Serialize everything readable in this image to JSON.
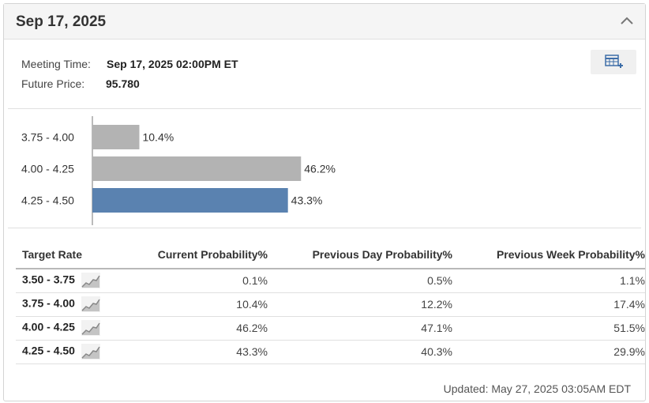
{
  "header": {
    "title": "Sep 17, 2025"
  },
  "meeting": {
    "time_label": "Meeting Time:",
    "time_value": "Sep 17, 2025 02:00PM ET",
    "price_label": "Future Price:",
    "price_value": "95.780"
  },
  "chart_data": {
    "type": "bar",
    "orientation": "horizontal",
    "categories": [
      "3.75 - 4.00",
      "4.00 - 4.25",
      "4.25 - 4.50"
    ],
    "values": [
      10.4,
      46.2,
      43.3
    ],
    "value_labels": [
      "10.4%",
      "46.2%",
      "43.3%"
    ],
    "highlight_index": 2,
    "colors": {
      "default": "#b3b3b3",
      "highlight": "#5a82b0"
    },
    "title": "",
    "xlabel": "",
    "ylabel": ""
  },
  "table": {
    "headers": [
      "Target Rate",
      "Current Probability%",
      "Previous Day Probability%",
      "Previous Week Probability%"
    ],
    "rows": [
      {
        "rate": "3.50 - 3.75",
        "current": "0.1%",
        "prev_day": "0.5%",
        "prev_week": "1.1%"
      },
      {
        "rate": "3.75 - 4.00",
        "current": "10.4%",
        "prev_day": "12.2%",
        "prev_week": "17.4%"
      },
      {
        "rate": "4.00 - 4.25",
        "current": "46.2%",
        "prev_day": "47.1%",
        "prev_week": "51.5%"
      },
      {
        "rate": "4.25 - 4.50",
        "current": "43.3%",
        "prev_day": "40.3%",
        "prev_week": "29.9%"
      }
    ]
  },
  "footer": {
    "updated": "Updated: May 27, 2025 03:05AM EDT"
  },
  "icons": {
    "collapse": "chevron-up-icon",
    "export": "table-add-icon",
    "trend": "line-chart-icon"
  }
}
